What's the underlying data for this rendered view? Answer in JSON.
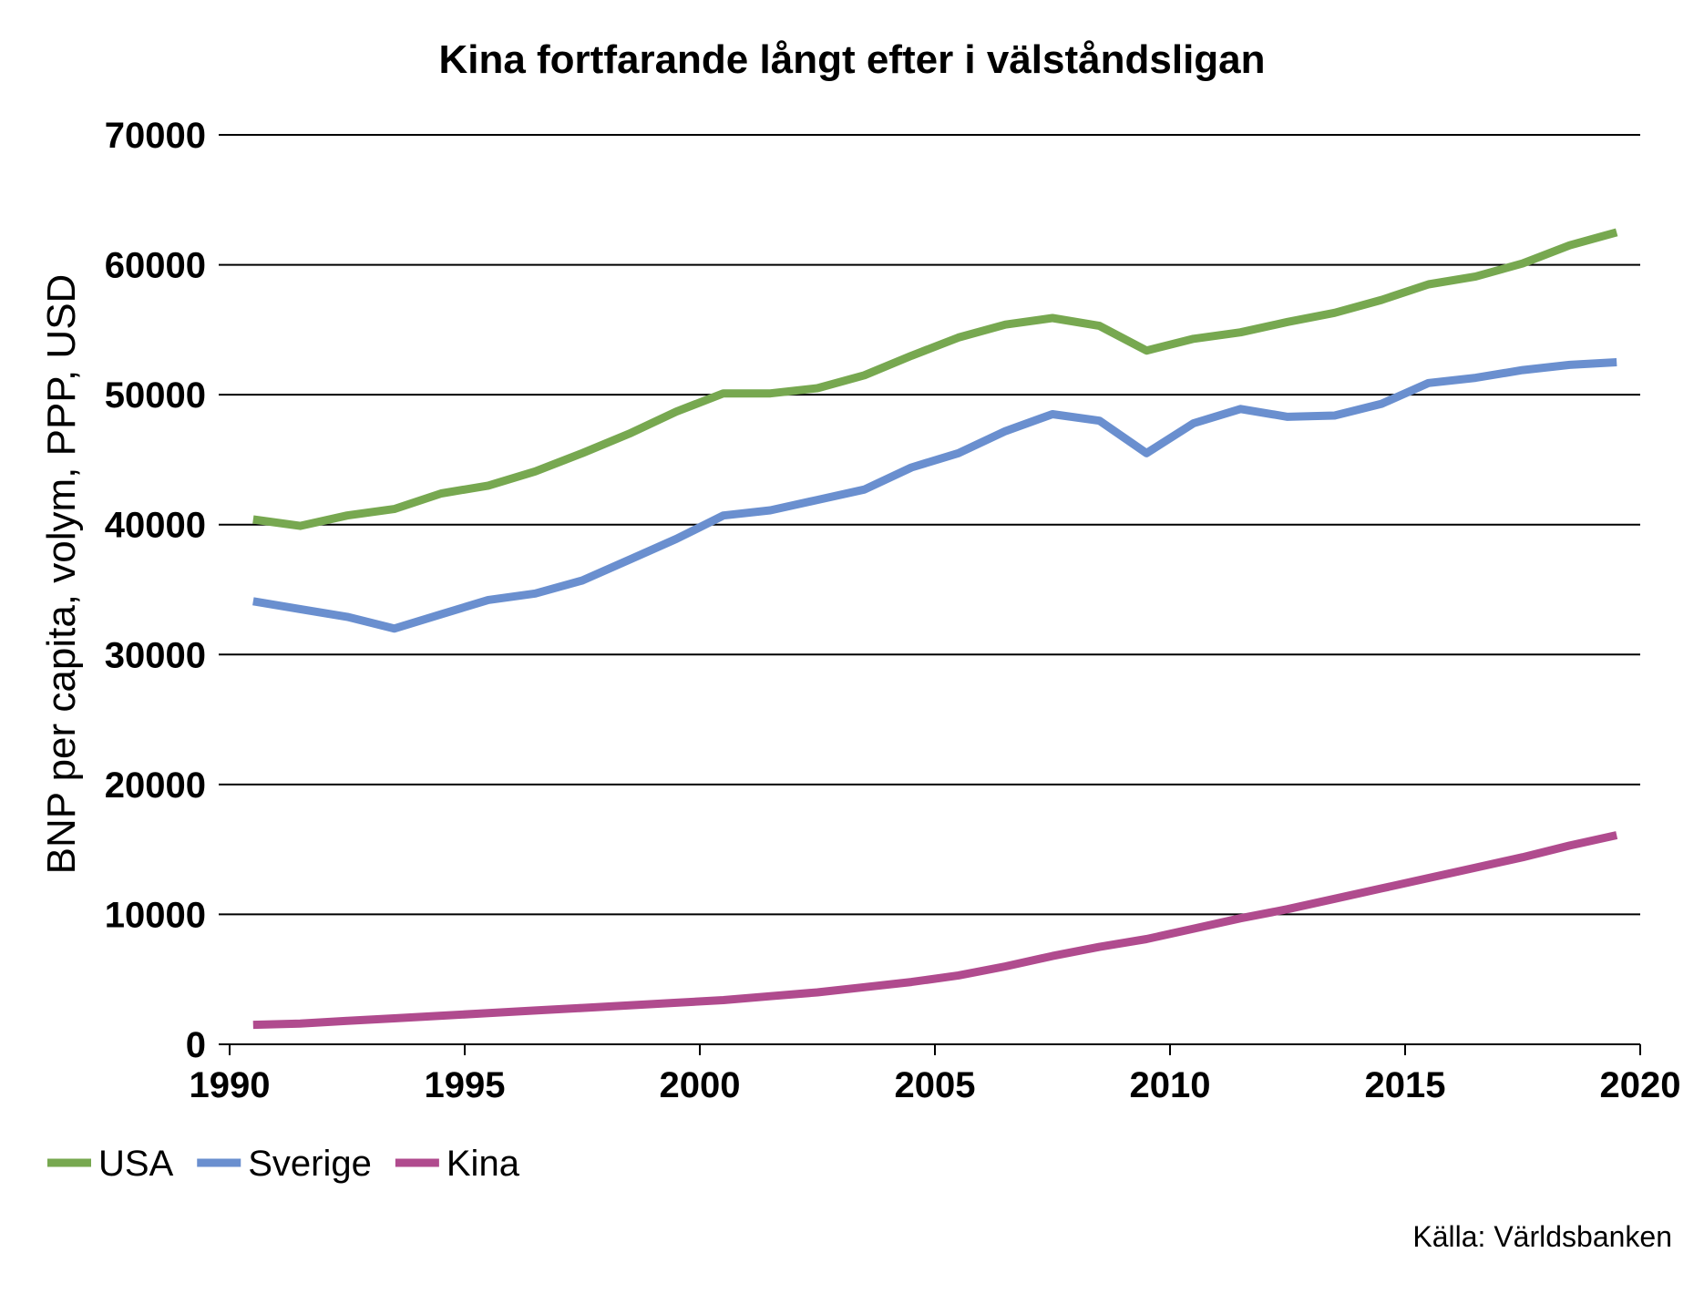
{
  "chart_data": {
    "type": "line",
    "title": "Kina fortfarande långt efter i välståndsligan",
    "xlabel": "",
    "ylabel": "BNP per capita, volym, PPP, USD",
    "source": "Källa: Världsbanken",
    "xlim": [
      1990,
      2020
    ],
    "ylim": [
      0,
      70000
    ],
    "x_ticks": [
      1990,
      1995,
      2000,
      2005,
      2010,
      2015,
      2020
    ],
    "y_ticks": [
      0,
      10000,
      20000,
      30000,
      40000,
      50000,
      60000,
      70000
    ],
    "grid": "horizontal",
    "legend_position": "bottom-left",
    "x": [
      1990.5,
      1991.5,
      1992.5,
      1993.5,
      1994.5,
      1995.5,
      1996.5,
      1997.5,
      1998.5,
      1999.5,
      2000.5,
      2001.5,
      2002.5,
      2003.5,
      2004.5,
      2005.5,
      2006.5,
      2007.5,
      2008.5,
      2009.5,
      2010.5,
      2011.5,
      2012.5,
      2013.5,
      2014.5,
      2015.5,
      2016.5,
      2017.5,
      2018.5,
      2019.5
    ],
    "series": [
      {
        "name": "USA",
        "color": "#77a850",
        "values": [
          40400,
          39900,
          40700,
          41200,
          42400,
          43000,
          44100,
          45500,
          47000,
          48700,
          50100,
          50100,
          50500,
          51500,
          53000,
          54400,
          55400,
          55900,
          55300,
          53400,
          54300,
          54800,
          55600,
          56300,
          57300,
          58500,
          59100,
          60100,
          61500,
          62500
        ]
      },
      {
        "name": "Sverige",
        "color": "#6a8fcf",
        "values": [
          34100,
          33500,
          32900,
          32000,
          33100,
          34200,
          34700,
          35700,
          37300,
          38900,
          40700,
          41100,
          41900,
          42700,
          44400,
          45500,
          47200,
          48500,
          48000,
          45500,
          47800,
          48900,
          48300,
          48400,
          49300,
          50900,
          51300,
          51900,
          52300,
          52500
        ]
      },
      {
        "name": "Kina",
        "color": "#b04b8e",
        "values": [
          1500,
          1600,
          1800,
          2000,
          2200,
          2400,
          2600,
          2800,
          3000,
          3200,
          3400,
          3700,
          4000,
          4400,
          4800,
          5300,
          6000,
          6800,
          7500,
          8100,
          8900,
          9700,
          10400,
          11200,
          12000,
          12800,
          13600,
          14400,
          15300,
          16100
        ]
      }
    ]
  }
}
